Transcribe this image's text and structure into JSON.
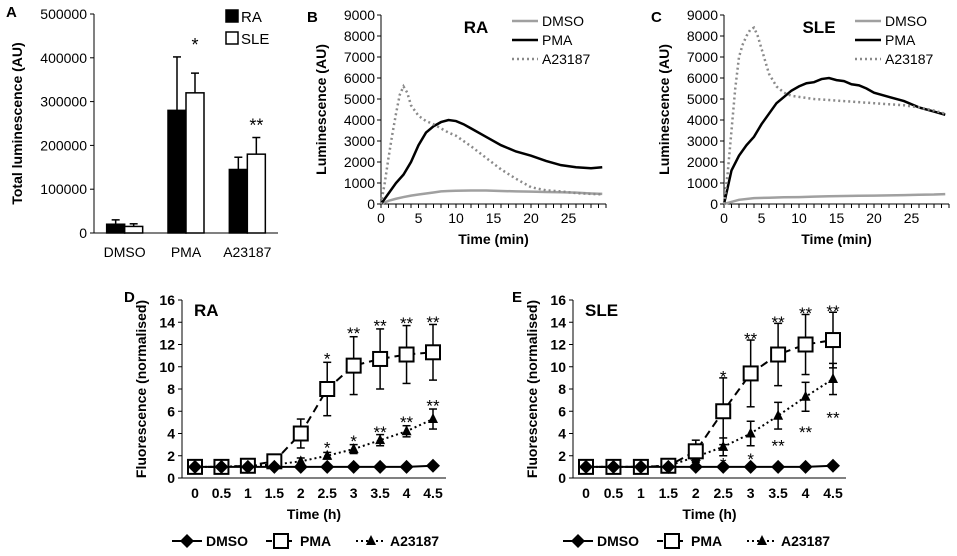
{
  "chart_data": [
    {
      "panel": "A",
      "type": "bar",
      "title": "",
      "ylabel": "Total luminescence (AU)",
      "xlabel": "",
      "ylim": [
        0,
        500000
      ],
      "yticks": [
        "0",
        "100000",
        "200000",
        "300000",
        "400000",
        "500000"
      ],
      "categories": [
        "DMSO",
        "PMA",
        "A23187"
      ],
      "series": [
        {
          "name": "RA",
          "color": "#000000",
          "values": [
            20000,
            280000,
            145000
          ],
          "errors": [
            10000,
            122000,
            28000
          ]
        },
        {
          "name": "SLE",
          "color": "#ffffff",
          "values": [
            15000,
            320000,
            180000
          ],
          "errors": [
            6000,
            45000,
            38000
          ]
        }
      ],
      "annotations": [
        {
          "category": "PMA",
          "text": "*"
        },
        {
          "category": "A23187",
          "text": "**"
        }
      ]
    },
    {
      "panel": "B",
      "type": "line",
      "title": "RA",
      "xlabel": "Time (min)",
      "ylabel": "Luminescence (AU)",
      "xlim": [
        0,
        30
      ],
      "ylim": [
        0,
        9000
      ],
      "xticks": [
        "0",
        "5",
        "10",
        "15",
        "20",
        "25"
      ],
      "yticks": [
        "0",
        "1000",
        "2000",
        "3000",
        "4000",
        "5000",
        "6000",
        "7000",
        "8000",
        "9000"
      ],
      "series": [
        {
          "name": "DMSO",
          "style": "solid-gray",
          "color": "#a0a0a0",
          "x": [
            0,
            1,
            2,
            3,
            4,
            5,
            6,
            7,
            8,
            9,
            10,
            12,
            14,
            16,
            18,
            20,
            22,
            24,
            26,
            28,
            29.5
          ],
          "y": [
            0,
            150,
            250,
            330,
            400,
            450,
            500,
            550,
            600,
            620,
            630,
            640,
            640,
            620,
            600,
            590,
            570,
            560,
            540,
            500,
            480
          ]
        },
        {
          "name": "PMA",
          "style": "solid-black",
          "color": "#000000",
          "x": [
            0,
            1,
            2,
            3,
            4,
            5,
            6,
            7,
            8,
            9,
            10,
            11,
            12,
            14,
            16,
            18,
            20,
            22,
            24,
            26,
            28,
            29.5
          ],
          "y": [
            0,
            500,
            1000,
            1400,
            2000,
            2800,
            3400,
            3700,
            3900,
            4000,
            3950,
            3800,
            3600,
            3200,
            2800,
            2500,
            2300,
            2050,
            1850,
            1750,
            1700,
            1750
          ]
        },
        {
          "name": "A23187",
          "style": "dotted-gray",
          "color": "#8a8a8a",
          "x": [
            0,
            0.5,
            1,
            1.5,
            2,
            2.5,
            3,
            3.5,
            4,
            5,
            6,
            7,
            8,
            9,
            10,
            12,
            14,
            16,
            18,
            20,
            22,
            24,
            26,
            28,
            29.5
          ],
          "y": [
            0,
            1000,
            2200,
            3300,
            4300,
            5200,
            5600,
            5300,
            4700,
            4200,
            3950,
            3800,
            3600,
            3400,
            3250,
            2750,
            2200,
            1650,
            1200,
            800,
            650,
            600,
            520,
            480,
            460
          ]
        }
      ],
      "legend": [
        "DMSO",
        "PMA",
        "A23187"
      ]
    },
    {
      "panel": "C",
      "type": "line",
      "title": "SLE",
      "xlabel": "Time (min)",
      "ylabel": "Luminescence (AU)",
      "xlim": [
        0,
        30
      ],
      "ylim": [
        0,
        9000
      ],
      "xticks": [
        "0",
        "5",
        "10",
        "15",
        "20",
        "25"
      ],
      "yticks": [
        "0",
        "1000",
        "2000",
        "3000",
        "4000",
        "5000",
        "6000",
        "7000",
        "8000",
        "9000"
      ],
      "series": [
        {
          "name": "DMSO",
          "style": "solid-gray",
          "color": "#a0a0a0",
          "x": [
            0,
            2,
            4,
            6,
            8,
            10,
            12,
            14,
            16,
            18,
            20,
            22,
            24,
            26,
            28,
            29.5
          ],
          "y": [
            0,
            200,
            280,
            300,
            320,
            330,
            350,
            370,
            380,
            390,
            400,
            410,
            420,
            440,
            450,
            470
          ]
        },
        {
          "name": "PMA",
          "style": "solid-black",
          "color": "#000000",
          "x": [
            0,
            0.5,
            1,
            2,
            3,
            4,
            5,
            6,
            7,
            8,
            9,
            10,
            11,
            12,
            13,
            14,
            15,
            16,
            17,
            18,
            19,
            20,
            22,
            24,
            26,
            28,
            29.5
          ],
          "y": [
            0,
            800,
            1600,
            2300,
            2800,
            3200,
            3800,
            4300,
            4800,
            5100,
            5400,
            5600,
            5750,
            5800,
            5950,
            6000,
            5900,
            5850,
            5700,
            5650,
            5500,
            5300,
            5100,
            4900,
            4600,
            4400,
            4250
          ]
        },
        {
          "name": "A23187",
          "style": "dotted-gray",
          "color": "#8a8a8a",
          "x": [
            0,
            0.5,
            1,
            1.5,
            2,
            2.5,
            3,
            3.5,
            4,
            4.5,
            5,
            5.5,
            6,
            7,
            8,
            9,
            10,
            12,
            14,
            16,
            18,
            20,
            22,
            24,
            26,
            28,
            29.5
          ],
          "y": [
            0,
            1500,
            3500,
            5500,
            7000,
            7600,
            8000,
            8300,
            8400,
            8000,
            7400,
            6800,
            6200,
            5600,
            5300,
            5150,
            5100,
            5000,
            4950,
            4900,
            4850,
            4800,
            4750,
            4700,
            4600,
            4450,
            4300
          ]
        }
      ],
      "legend": [
        "DMSO",
        "PMA",
        "A23187"
      ]
    },
    {
      "panel": "D",
      "type": "line",
      "title": "RA",
      "xlabel": "Time (h)",
      "ylabel": "Fluorescence (normalised)",
      "ylim": [
        0,
        16
      ],
      "categories": [
        "0",
        "0.5",
        "1",
        "1.5",
        "2",
        "2.5",
        "3",
        "3.5",
        "4",
        "4.5"
      ],
      "yticks": [
        "0",
        "2",
        "4",
        "6",
        "8",
        "10",
        "12",
        "14",
        "16"
      ],
      "series": [
        {
          "name": "DMSO",
          "marker": "diamond",
          "line": "solid",
          "values": [
            1,
            1,
            1,
            1,
            1,
            1,
            1,
            1,
            1,
            1.1
          ],
          "errors": [
            0,
            0,
            0,
            0,
            0,
            0,
            0,
            0,
            0,
            0
          ]
        },
        {
          "name": "PMA",
          "marker": "square",
          "line": "dashed",
          "values": [
            1,
            1,
            1.1,
            1.5,
            4,
            8,
            10.1,
            10.7,
            11.1,
            11.3
          ],
          "errors": [
            0.2,
            0.2,
            0.3,
            0.4,
            1.3,
            2.4,
            2.6,
            2.7,
            2.6,
            2.5
          ]
        },
        {
          "name": "A23187",
          "marker": "triangle",
          "line": "dotted",
          "values": [
            1,
            1,
            1.1,
            1.2,
            1.5,
            2,
            2.6,
            3.4,
            4.2,
            5.3
          ],
          "errors": [
            0.1,
            0.1,
            0.1,
            0.2,
            0.3,
            0.3,
            0.4,
            0.5,
            0.5,
            0.9
          ]
        }
      ],
      "annotations": [
        {
          "x": "2.5",
          "series": "PMA",
          "text": "*",
          "y": 10.9
        },
        {
          "x": "3",
          "series": "PMA",
          "text": "**",
          "y": 13.2
        },
        {
          "x": "3.5",
          "series": "PMA",
          "text": "**",
          "y": 13.9
        },
        {
          "x": "4",
          "series": "PMA",
          "text": "**",
          "y": 14.1
        },
        {
          "x": "4.5",
          "series": "PMA",
          "text": "**",
          "y": 14.2
        },
        {
          "x": "2.5",
          "series": "A23187",
          "text": "*",
          "y": 2.9
        },
        {
          "x": "3",
          "series": "A23187",
          "text": "*",
          "y": 3.5
        },
        {
          "x": "3.5",
          "series": "A23187",
          "text": "**",
          "y": 4.3
        },
        {
          "x": "4",
          "series": "A23187",
          "text": "**",
          "y": 5.2
        },
        {
          "x": "4.5",
          "series": "A23187",
          "text": "**",
          "y": 6.7
        }
      ],
      "legend": [
        "DMSO",
        "PMA",
        "A23187"
      ]
    },
    {
      "panel": "E",
      "type": "line",
      "title": "SLE",
      "xlabel": "Time (h)",
      "ylabel": "Fluorescence (normalised)",
      "ylim": [
        0,
        16
      ],
      "categories": [
        "0",
        "0.5",
        "1",
        "1.5",
        "2",
        "2.5",
        "3",
        "3.5",
        "4",
        "4.5"
      ],
      "yticks": [
        "0",
        "2",
        "4",
        "6",
        "8",
        "10",
        "12",
        "14",
        "16"
      ],
      "series": [
        {
          "name": "DMSO",
          "marker": "diamond",
          "line": "solid",
          "values": [
            1,
            1,
            1,
            1,
            1,
            1,
            1,
            1,
            1,
            1.1
          ],
          "errors": [
            0,
            0,
            0,
            0,
            0,
            0,
            0,
            0,
            0,
            0
          ]
        },
        {
          "name": "PMA",
          "marker": "square",
          "line": "dashed",
          "values": [
            1,
            1,
            1,
            1.1,
            2.4,
            6,
            9.4,
            11.1,
            12,
            12.4
          ],
          "errors": [
            0.2,
            0.2,
            0.2,
            0.4,
            1,
            3,
            3,
            2.8,
            2.7,
            2.5
          ]
        },
        {
          "name": "A23187",
          "marker": "triangle",
          "line": "dotted",
          "values": [
            1,
            1,
            1,
            1.1,
            1.9,
            2.8,
            4,
            5.6,
            7.3,
            8.9
          ],
          "errors": [
            0.1,
            0.1,
            0.1,
            0.2,
            0.4,
            0.8,
            1.1,
            1.2,
            1.3,
            1.4
          ]
        }
      ],
      "annotations": [
        {
          "x": "2.5",
          "series": "PMA",
          "text": "*",
          "y": 9.3
        },
        {
          "x": "3",
          "series": "PMA",
          "text": "**",
          "y": 12.7
        },
        {
          "x": "3.5",
          "series": "PMA",
          "text": "**",
          "y": 14.2
        },
        {
          "x": "4",
          "series": "PMA",
          "text": "**",
          "y": 15
        },
        {
          "x": "4.5",
          "series": "PMA",
          "text": "**",
          "y": 15.2
        },
        {
          "x": "2.5",
          "series": "A23187",
          "text": "*",
          "y": 1.5
        },
        {
          "x": "3",
          "series": "A23187",
          "text": "*",
          "y": 1.9
        },
        {
          "x": "3.5",
          "series": "A23187",
          "text": "**",
          "y": 3.1
        },
        {
          "x": "4",
          "series": "A23187",
          "text": "**",
          "y": 4.3
        },
        {
          "x": "4.5",
          "series": "A23187",
          "text": "**",
          "y": 5.6
        }
      ],
      "legend": [
        "DMSO",
        "PMA",
        "A23187"
      ]
    }
  ]
}
